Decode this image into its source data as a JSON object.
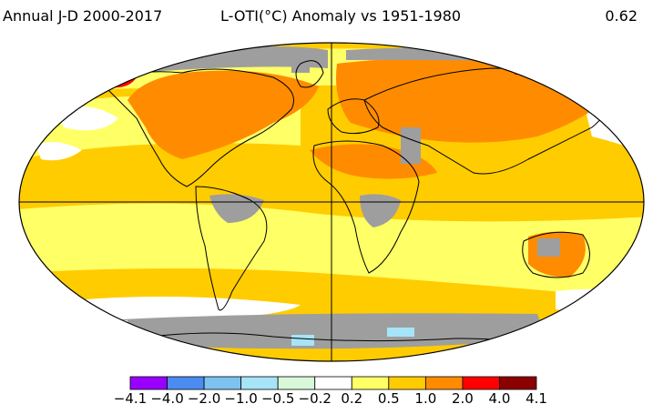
{
  "header": {
    "left": "Annual J-D 2000-2017",
    "center": "L-OTI(°C) Anomaly vs 1951-1980",
    "right": "0.62"
  },
  "colors": {
    "missing": "#9e9e9e",
    "ocean_light": "#ffff66",
    "gold": "#ffcc00",
    "orange": "#ff8c00",
    "red": "#ff0000",
    "dark_red": "#8b0000",
    "white": "#ffffff",
    "coast": "#000000"
  },
  "legend": {
    "bins": [
      {
        "color": "#9900ff"
      },
      {
        "color": "#4a8cf0"
      },
      {
        "color": "#7ec2f0"
      },
      {
        "color": "#a6e4f7"
      },
      {
        "color": "#d9f7d9"
      },
      {
        "color": "#ffffff"
      },
      {
        "color": "#ffff66"
      },
      {
        "color": "#ffcc00"
      },
      {
        "color": "#ff8c00"
      },
      {
        "color": "#ff0000"
      },
      {
        "color": "#8b0000"
      }
    ],
    "labels": [
      "−4.1",
      "−4.0",
      "−2.0",
      "−1.0",
      "−0.5",
      "−0.2",
      "0.2",
      "0.5",
      "1.0",
      "2.0",
      "4.0",
      "4.1"
    ]
  }
}
